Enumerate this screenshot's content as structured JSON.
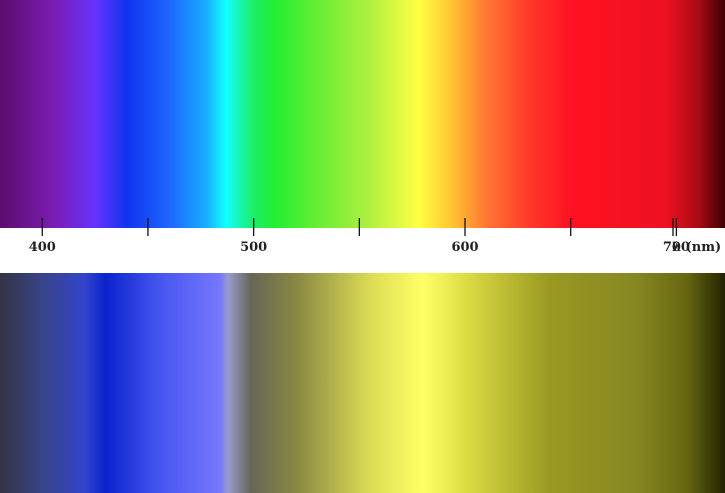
{
  "axis": {
    "label": "λ (nm)",
    "min_nm": 380,
    "max_nm": 723,
    "major_ticks": [
      400,
      500,
      600,
      700
    ],
    "minor_ticks": [
      450,
      550,
      650
    ]
  },
  "top_band": {
    "stops": [
      {
        "nm": 380,
        "color": "#5a0d6e"
      },
      {
        "nm": 405,
        "color": "#7a1cb0"
      },
      {
        "nm": 425,
        "color": "#6633ff"
      },
      {
        "nm": 440,
        "color": "#1133ee"
      },
      {
        "nm": 460,
        "color": "#1e66ff"
      },
      {
        "nm": 478,
        "color": "#18b0ff"
      },
      {
        "nm": 487,
        "color": "#12ffff"
      },
      {
        "nm": 500,
        "color": "#1cee66"
      },
      {
        "nm": 510,
        "color": "#22ee33"
      },
      {
        "nm": 530,
        "color": "#66ee33"
      },
      {
        "nm": 555,
        "color": "#b0f040"
      },
      {
        "nm": 578,
        "color": "#ffff44"
      },
      {
        "nm": 595,
        "color": "#ffc030"
      },
      {
        "nm": 610,
        "color": "#ff7733"
      },
      {
        "nm": 630,
        "color": "#ff3a2a"
      },
      {
        "nm": 650,
        "color": "#ff1122"
      },
      {
        "nm": 695,
        "color": "#ee1122"
      },
      {
        "nm": 711,
        "color": "#a50a14"
      },
      {
        "nm": 723,
        "color": "#3a0004"
      }
    ]
  },
  "bottom_band": {
    "stops": [
      {
        "nm": 380,
        "color": "#333344"
      },
      {
        "nm": 400,
        "color": "#3a4488"
      },
      {
        "nm": 420,
        "color": "#3344cc"
      },
      {
        "nm": 430,
        "color": "#0b22cc"
      },
      {
        "nm": 455,
        "color": "#4455ee"
      },
      {
        "nm": 484,
        "color": "#7777ff"
      },
      {
        "nm": 488,
        "color": "#9999cc"
      },
      {
        "nm": 499,
        "color": "#666655"
      },
      {
        "nm": 520,
        "color": "#888844"
      },
      {
        "nm": 556,
        "color": "#dddd55"
      },
      {
        "nm": 580,
        "color": "#ffff66"
      },
      {
        "nm": 600,
        "color": "#dddd44"
      },
      {
        "nm": 640,
        "color": "#999922"
      },
      {
        "nm": 680,
        "color": "#888822"
      },
      {
        "nm": 705,
        "color": "#666611"
      },
      {
        "nm": 723,
        "color": "#222200"
      }
    ]
  }
}
